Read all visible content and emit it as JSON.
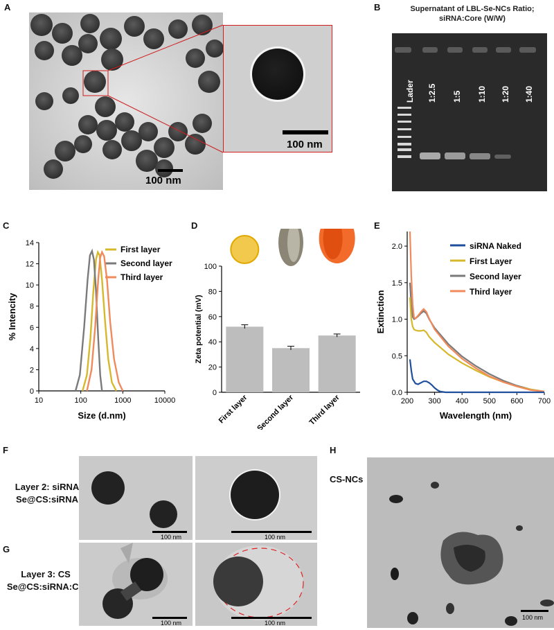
{
  "panel_labels": {
    "A": "A",
    "B": "B",
    "C": "C",
    "D": "D",
    "E": "E",
    "F": "F",
    "G": "G",
    "H": "H"
  },
  "panel_a": {
    "scale_label": "100 nm",
    "inset_scale_label": "100 nm"
  },
  "panel_b": {
    "title_line1": "Supernatant of LBL-Se-NCs Ratio;",
    "title_line2": "siRNA:Core (W/W)",
    "lanes": [
      "Lader",
      "1:2.5",
      "1:5",
      "1:10",
      "1:20",
      "1:40"
    ]
  },
  "panel_f": {
    "label_line1": "Layer 2: siRNA",
    "label_line2": "Se@CS:siRNA",
    "scale_left": "100 nm",
    "scale_right": "100 nm"
  },
  "panel_g": {
    "label_line1": "Layer 3: CS",
    "label_line2": "Se@CS:siRNA:CS",
    "scale_left": "100 nm",
    "scale_right": "100 nm"
  },
  "panel_h": {
    "label": "CS-NCs",
    "scale_label": "100 nm"
  },
  "colors": {
    "first": "#D6B82C",
    "second": "#7A7A7A",
    "third": "#F08A5D",
    "naked": "#1F4E9A",
    "bar": "#BDBDBD"
  },
  "chart_data": [
    {
      "id": "C",
      "type": "line",
      "xlabel": "Size (d.nm)",
      "ylabel": "% Intencity",
      "xscale": "log",
      "xlim": [
        10,
        10000
      ],
      "ylim": [
        0,
        14
      ],
      "xticks": [
        10,
        100,
        1000,
        10000
      ],
      "yticks": [
        0,
        2,
        4,
        6,
        8,
        10,
        12,
        14
      ],
      "legend": "top-right",
      "series": [
        {
          "name": "First layer",
          "color_key": "first",
          "x": [
            110,
            140,
            170,
            200,
            230,
            255,
            280,
            320,
            380,
            450,
            550,
            700
          ],
          "y": [
            0,
            1.5,
            5,
            9.5,
            12.4,
            13.1,
            12.8,
            10.5,
            6.5,
            3,
            0.8,
            0
          ]
        },
        {
          "name": "Second layer",
          "color_key": "second",
          "x": [
            75,
            95,
            120,
            145,
            165,
            185,
            205,
            230,
            260,
            290,
            320
          ],
          "y": [
            0,
            1.5,
            6,
            10.5,
            12.8,
            13.2,
            12.4,
            9.5,
            5,
            1.5,
            0
          ]
        },
        {
          "name": "Third layer",
          "color_key": "third",
          "x": [
            140,
            180,
            220,
            260,
            290,
            320,
            360,
            420,
            500,
            620,
            800,
            1000
          ],
          "y": [
            0,
            2,
            6,
            10.5,
            12.6,
            13.1,
            12.7,
            10.5,
            6.5,
            3,
            0.8,
            0
          ]
        }
      ]
    },
    {
      "id": "D",
      "type": "bar",
      "ylabel": "Zeta potential (mV)",
      "ylim": [
        0,
        100
      ],
      "yticks": [
        0,
        20,
        40,
        60,
        80,
        100
      ],
      "categories": [
        "First layer",
        "Second layer",
        "Third layer"
      ],
      "values": [
        52,
        35,
        45
      ],
      "errors": [
        1.5,
        1.5,
        1.2
      ]
    },
    {
      "id": "E",
      "type": "line",
      "xlabel": "Wavelength (nm)",
      "ylabel": "Extinction",
      "xlim": [
        200,
        700
      ],
      "ylim": [
        0,
        2.2
      ],
      "xticks": [
        200,
        300,
        400,
        500,
        600,
        700
      ],
      "yticks": [
        0.0,
        0.5,
        1.0,
        1.5,
        2.0
      ],
      "legend": "top-right",
      "series": [
        {
          "name": "siRNA Naked",
          "color_key": "naked",
          "x": [
            210,
            215,
            220,
            230,
            240,
            250,
            260,
            270,
            280,
            290,
            300,
            310,
            320,
            340,
            400,
            700
          ],
          "y": [
            0.45,
            0.3,
            0.18,
            0.12,
            0.11,
            0.13,
            0.15,
            0.15,
            0.13,
            0.1,
            0.06,
            0.03,
            0.01,
            0,
            0,
            0
          ]
        },
        {
          "name": "First Layer",
          "color_key": "first",
          "x": [
            210,
            215,
            220,
            225,
            230,
            240,
            250,
            260,
            270,
            280,
            300,
            350,
            400,
            450,
            500,
            550,
            600,
            650,
            700
          ],
          "y": [
            1.3,
            1.0,
            0.9,
            0.86,
            0.85,
            0.84,
            0.84,
            0.85,
            0.82,
            0.76,
            0.68,
            0.52,
            0.4,
            0.3,
            0.21,
            0.14,
            0.08,
            0.04,
            0.01
          ]
        },
        {
          "name": "Second layer",
          "color_key": "second",
          "x": [
            210,
            215,
            220,
            225,
            230,
            240,
            250,
            260,
            270,
            280,
            300,
            350,
            400,
            450,
            500,
            550,
            600,
            650,
            700
          ],
          "y": [
            1.5,
            1.2,
            1.03,
            1.0,
            1.01,
            1.04,
            1.08,
            1.11,
            1.08,
            1.0,
            0.88,
            0.66,
            0.49,
            0.36,
            0.25,
            0.16,
            0.09,
            0.04,
            0.01
          ]
        },
        {
          "name": "Third layer",
          "color_key": "third",
          "x": [
            210,
            215,
            220,
            225,
            230,
            240,
            250,
            260,
            270,
            280,
            300,
            350,
            400,
            450,
            500,
            550,
            600,
            650,
            700
          ],
          "y": [
            2.25,
            1.6,
            1.2,
            1.02,
            1.01,
            1.05,
            1.1,
            1.14,
            1.1,
            1.01,
            0.86,
            0.63,
            0.46,
            0.33,
            0.22,
            0.14,
            0.08,
            0.03,
            0.01
          ]
        }
      ]
    }
  ]
}
